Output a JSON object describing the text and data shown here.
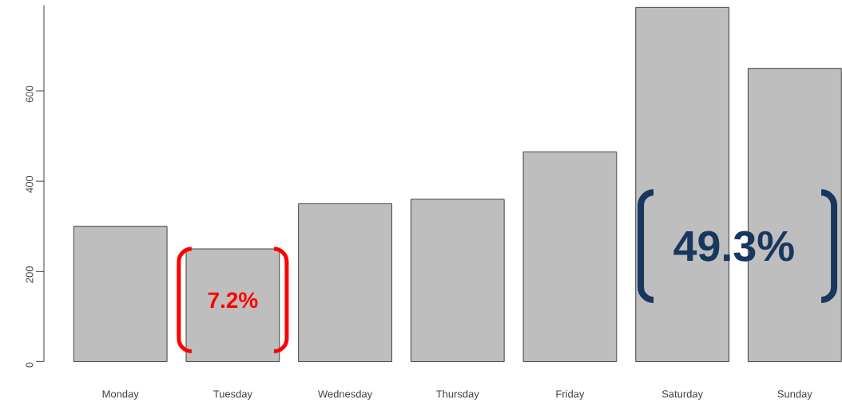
{
  "chart_data": {
    "type": "bar",
    "categories": [
      "Monday",
      "Tuesday",
      "Wednesday",
      "Thursday",
      "Friday",
      "Saturday",
      "Sunday"
    ],
    "values": [
      300,
      250,
      350,
      360,
      465,
      785,
      650
    ],
    "color": "#bebebe",
    "ylim": [
      0,
      790
    ],
    "yticks": [
      0,
      200,
      400,
      600
    ],
    "annotations": [
      "7.2%",
      "49.3%"
    ]
  }
}
